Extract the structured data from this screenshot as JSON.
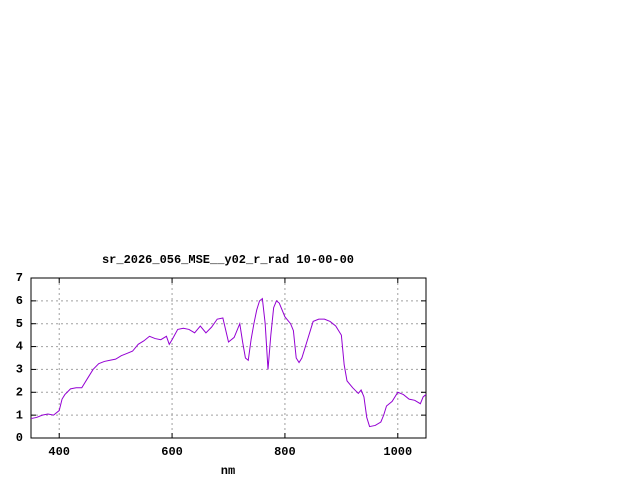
{
  "chart_data": {
    "type": "line",
    "title": "sr_2026_056_MSE__y02_r_rad 10-00-00",
    "xlabel": "nm",
    "x": [
      350,
      360,
      370,
      380,
      390,
      400,
      405,
      410,
      420,
      430,
      440,
      450,
      460,
      470,
      480,
      490,
      500,
      510,
      520,
      530,
      540,
      550,
      560,
      570,
      580,
      590,
      595,
      600,
      610,
      620,
      630,
      640,
      650,
      660,
      670,
      680,
      690,
      700,
      710,
      720,
      725,
      730,
      735,
      740,
      745,
      750,
      755,
      760,
      765,
      770,
      775,
      780,
      785,
      790,
      800,
      810,
      815,
      820,
      825,
      830,
      840,
      850,
      860,
      870,
      880,
      890,
      900,
      905,
      910,
      920,
      930,
      935,
      940,
      945,
      950,
      960,
      970,
      975,
      980,
      990,
      1000,
      1010,
      1020,
      1030,
      1040,
      1045,
      1050
    ],
    "series": [
      {
        "color": "#9400d3",
        "values": [
          0.85,
          0.9,
          1.0,
          1.05,
          1.0,
          1.2,
          1.7,
          1.9,
          2.15,
          2.2,
          2.2,
          2.6,
          3.0,
          3.25,
          3.35,
          3.4,
          3.45,
          3.6,
          3.7,
          3.8,
          4.1,
          4.25,
          4.45,
          4.35,
          4.3,
          4.45,
          4.1,
          4.3,
          4.75,
          4.8,
          4.75,
          4.6,
          4.9,
          4.6,
          4.85,
          5.2,
          5.25,
          4.2,
          4.4,
          5.0,
          4.2,
          3.5,
          3.4,
          4.3,
          5.0,
          5.6,
          6.0,
          6.1,
          5.0,
          3.0,
          4.5,
          5.7,
          6.0,
          5.9,
          5.3,
          5.0,
          4.7,
          3.5,
          3.3,
          3.5,
          4.3,
          5.1,
          5.2,
          5.2,
          5.1,
          4.9,
          4.5,
          3.2,
          2.5,
          2.2,
          1.95,
          2.1,
          1.8,
          0.9,
          0.5,
          0.55,
          0.7,
          1.0,
          1.4,
          1.6,
          2.0,
          1.9,
          1.7,
          1.65,
          1.5,
          1.8,
          1.9
        ]
      }
    ],
    "xlim": [
      350,
      1050
    ],
    "ylim": [
      0,
      7
    ],
    "xticks": [
      400,
      600,
      800,
      1000
    ],
    "yticks": [
      0,
      1,
      2,
      3,
      4,
      5,
      6,
      7
    ],
    "grid": true
  }
}
